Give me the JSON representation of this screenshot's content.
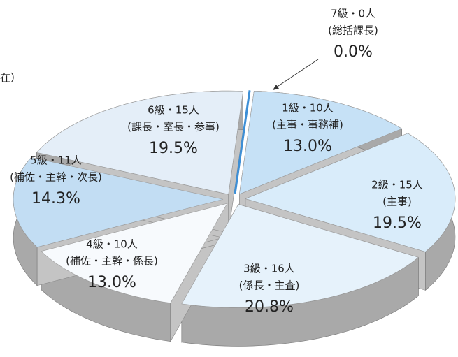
{
  "chart_data": {
    "type": "pie",
    "subtitle": "在）",
    "categories": [
      "1級・10人",
      "2級・15人",
      "3級・16人",
      "4級・10人",
      "5級・11人",
      "6級・15人",
      "7級・0人"
    ],
    "descriptions": [
      "(主事・事務補)",
      "(主事)",
      "(係長・主査)",
      "(補佐・主幹・係長)",
      "(補佐・主幹・次長)",
      "(課長・室長・参事)",
      "(総括課長)"
    ],
    "values": [
      13.0,
      19.5,
      20.8,
      13.0,
      14.3,
      19.5,
      0.0
    ],
    "value_labels": [
      "13.0%",
      "19.5%",
      "20.8%",
      "13.0%",
      "14.3%",
      "19.5%",
      "0.0%"
    ],
    "colors": [
      "#c6e1f6",
      "#d9ecfa",
      "#e6f2fb",
      "#f7fafd",
      "#c2ddf3",
      "#e4eef8",
      "#3d8fd6"
    ]
  }
}
